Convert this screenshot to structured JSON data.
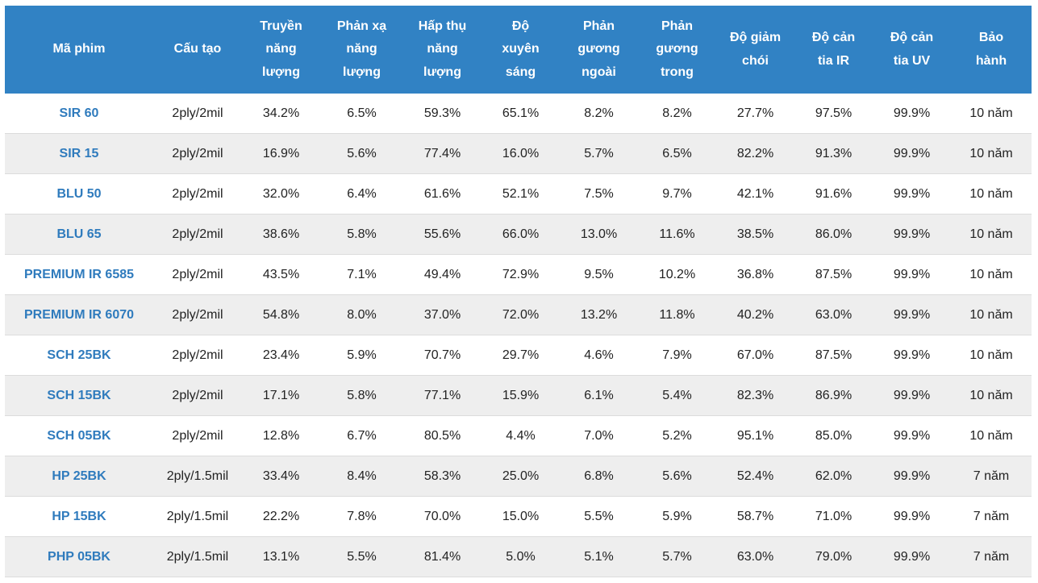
{
  "headers": [
    [
      "Mã phim"
    ],
    [
      "Cấu tạo"
    ],
    [
      "Truyền",
      "năng",
      "lượng"
    ],
    [
      "Phản xạ",
      "năng",
      "lượng"
    ],
    [
      "Hấp thụ",
      "năng",
      "lượng"
    ],
    [
      "Độ",
      "xuyên",
      "sáng"
    ],
    [
      "Phản",
      "gương",
      "ngoài"
    ],
    [
      "Phản",
      "gương",
      "trong"
    ],
    [
      "Độ giảm",
      "chói"
    ],
    [
      "Độ cản",
      "tia IR"
    ],
    [
      "Độ cản",
      "tia UV"
    ],
    [
      "Bảo",
      "hành"
    ]
  ],
  "rows": [
    [
      "SIR 60",
      "2ply/2mil",
      "34.2%",
      "6.5%",
      "59.3%",
      "65.1%",
      "8.2%",
      "8.2%",
      "27.7%",
      "97.5%",
      "99.9%",
      "10 năm"
    ],
    [
      "SIR 15",
      "2ply/2mil",
      "16.9%",
      "5.6%",
      "77.4%",
      "16.0%",
      "5.7%",
      "6.5%",
      "82.2%",
      "91.3%",
      "99.9%",
      "10 năm"
    ],
    [
      "BLU 50",
      "2ply/2mil",
      "32.0%",
      "6.4%",
      "61.6%",
      "52.1%",
      "7.5%",
      "9.7%",
      "42.1%",
      "91.6%",
      "99.9%",
      "10 năm"
    ],
    [
      "BLU 65",
      "2ply/2mil",
      "38.6%",
      "5.8%",
      "55.6%",
      "66.0%",
      "13.0%",
      "11.6%",
      "38.5%",
      "86.0%",
      "99.9%",
      "10 năm"
    ],
    [
      "PREMIUM IR 6585",
      "2ply/2mil",
      "43.5%",
      "7.1%",
      "49.4%",
      "72.9%",
      "9.5%",
      "10.2%",
      "36.8%",
      "87.5%",
      "99.9%",
      "10 năm"
    ],
    [
      "PREMIUM IR 6070",
      "2ply/2mil",
      "54.8%",
      "8.0%",
      "37.0%",
      "72.0%",
      "13.2%",
      "11.8%",
      "40.2%",
      "63.0%",
      "99.9%",
      "10 năm"
    ],
    [
      "SCH 25BK",
      "2ply/2mil",
      "23.4%",
      "5.9%",
      "70.7%",
      "29.7%",
      "4.6%",
      "7.9%",
      "67.0%",
      "87.5%",
      "99.9%",
      "10 năm"
    ],
    [
      "SCH 15BK",
      "2ply/2mil",
      "17.1%",
      "5.8%",
      "77.1%",
      "15.9%",
      "6.1%",
      "5.4%",
      "82.3%",
      "86.9%",
      "99.9%",
      "10 năm"
    ],
    [
      "SCH 05BK",
      "2ply/2mil",
      "12.8%",
      "6.7%",
      "80.5%",
      "4.4%",
      "7.0%",
      "5.2%",
      "95.1%",
      "85.0%",
      "99.9%",
      "10 năm"
    ],
    [
      "HP 25BK",
      "2ply/1.5mil",
      "33.4%",
      "8.4%",
      "58.3%",
      "25.0%",
      "6.8%",
      "5.6%",
      "52.4%",
      "62.0%",
      "99.9%",
      "7 năm"
    ],
    [
      "HP 15BK",
      "2ply/1.5mil",
      "22.2%",
      "7.8%",
      "70.0%",
      "15.0%",
      "5.5%",
      "5.9%",
      "58.7%",
      "71.0%",
      "99.9%",
      "7 năm"
    ],
    [
      "PHP 05BK",
      "2ply/1.5mil",
      "13.1%",
      "5.5%",
      "81.4%",
      "5.0%",
      "5.1%",
      "5.7%",
      "63.0%",
      "79.0%",
      "99.9%",
      "7 năm"
    ]
  ],
  "colors": {
    "header_bg": "#3182c4",
    "header_text": "#ffffff",
    "code_text": "#2f7bbd",
    "stripe_bg": "#eeeeee"
  }
}
